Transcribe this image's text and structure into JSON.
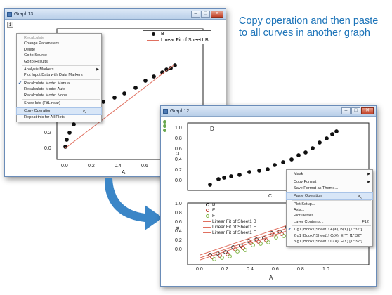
{
  "callout": {
    "text": "Copy operation and then paste to all curves in another graph"
  },
  "graph13": {
    "title": "Graph13",
    "layer_indicator": "1",
    "legend": [
      {
        "label": "B"
      },
      {
        "label": "Linear Fit of Sheet1 B"
      }
    ],
    "xlabel": "A",
    "ylabel": "B",
    "yticks": [
      "0.2",
      "0.0"
    ],
    "xticks": [
      "0.0",
      "0.2",
      "0.4",
      "0.6",
      "0.8",
      "1.0"
    ],
    "menu": [
      {
        "label": "Recalculate",
        "gray": true
      },
      {
        "label": "Change Parameters..."
      },
      {
        "label": "Delete"
      },
      {
        "label": "Go to Source"
      },
      {
        "label": "Go to Results"
      },
      {
        "sep": true
      },
      {
        "label": "Analysis Markers",
        "arrow": true
      },
      {
        "label": "Plot Input Data with Data Markers"
      },
      {
        "sep": true
      },
      {
        "label": "Recalculate Mode: Manual",
        "checked": true
      },
      {
        "label": "Recalculate Mode: Auto"
      },
      {
        "label": "Recalculate Mode: None"
      },
      {
        "sep": true
      },
      {
        "label": "Show Info (FitLinear)"
      },
      {
        "sep": true
      },
      {
        "label": "Copy Operation",
        "highlight": true
      },
      {
        "label": "Repeat this for All Plots"
      }
    ]
  },
  "graph12": {
    "title": "Graph12",
    "top_ylabel": "D",
    "top_series_label": "D",
    "top_yticks": [
      "1.0",
      "0.8",
      "0.6",
      "0.4",
      "0.2",
      "0.0"
    ],
    "top_xlabel": "C",
    "bottom_ylabel": "B",
    "bottom_yticks": [
      "1.0",
      "0.8",
      "0.6",
      "0.4",
      "0.2",
      "0.0"
    ],
    "bottom_xticks": [
      "0.0",
      "0.2",
      "0.4",
      "0.6",
      "0.8",
      "1.0"
    ],
    "bottom_xlabel": "A",
    "legend": [
      {
        "label": "B",
        "color": "#222222"
      },
      {
        "label": "E",
        "color": "#c0392b"
      },
      {
        "label": "F",
        "color": "#7cb342"
      },
      {
        "label": "Linear Fit of Sheet1 B"
      },
      {
        "label": "Linear Fit of Sheet1 E"
      },
      {
        "label": "Linear Fit of Sheet1 F"
      }
    ],
    "menu": [
      {
        "label": "Mask",
        "arrow": true
      },
      {
        "sep": true
      },
      {
        "label": "Copy Format",
        "arrow": true
      },
      {
        "label": "Save Format as Theme..."
      },
      {
        "sep": true
      },
      {
        "label": "Paste Operation",
        "highlight": true
      },
      {
        "sep": true
      },
      {
        "label": "Plot Setup..."
      },
      {
        "label": "Axis..."
      },
      {
        "label": "Plot Details..."
      },
      {
        "label": "Layer Contents...",
        "shortcut": "F12"
      },
      {
        "sep": true
      },
      {
        "label": "1 g1 [Book7]Sheet1! A(X), B(Y) [1*:32*]",
        "checked": true
      },
      {
        "label": "2 g1 [Book7]Sheet1! C(X), E(Y) [1*:32*]"
      },
      {
        "label": "3 g1 [Book7]Sheet1! C(X), F(Y) [1*:32*]"
      }
    ]
  }
}
